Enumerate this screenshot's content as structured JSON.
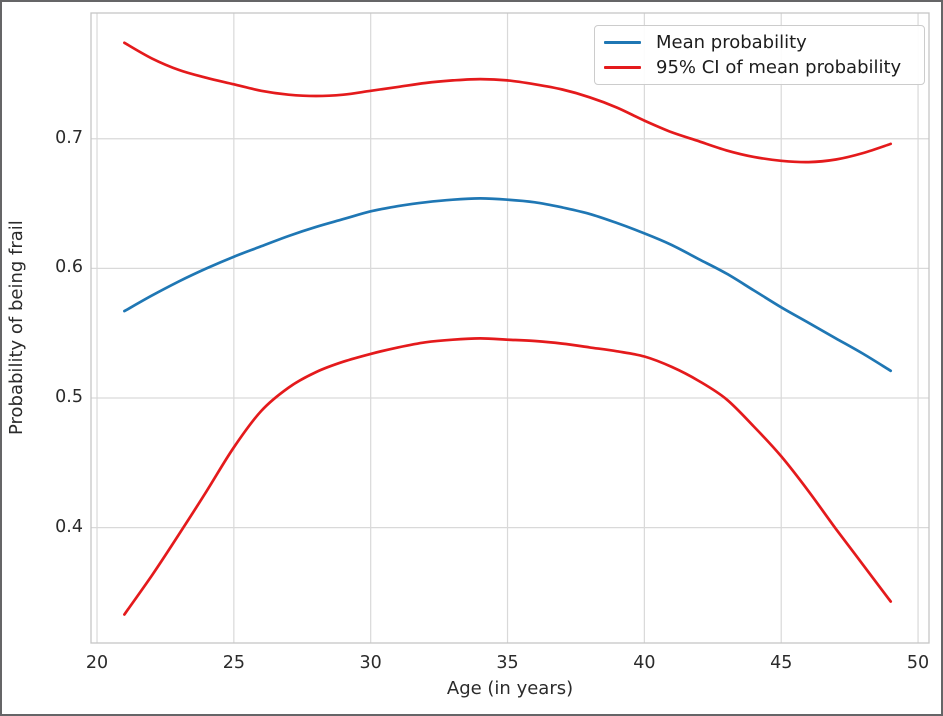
{
  "figure": {
    "background": "#ffffff",
    "border_color": "#656567"
  },
  "chart_data": {
    "type": "line",
    "title": "",
    "xlabel": "Age (in years)",
    "ylabel": "Probability of being frail",
    "xlim": [
      19.78,
      50.4
    ],
    "ylim": [
      0.311,
      0.797
    ],
    "x_ticks": [
      20,
      25,
      30,
      35,
      40,
      45,
      50
    ],
    "y_ticks": [
      0.4,
      0.5,
      0.6,
      0.7
    ],
    "x_tick_labels": [
      "20",
      "25",
      "30",
      "35",
      "40",
      "45",
      "50"
    ],
    "y_tick_labels": [
      "0.4",
      "0.5",
      "0.6",
      "0.7"
    ],
    "grid": true,
    "grid_color": "#d9d9d9",
    "spine_color": "#c6c6c6",
    "text_color": "#2b2b2b",
    "legend_position": "upper right",
    "x": [
      21,
      22,
      23,
      24,
      25,
      26,
      27,
      28,
      29,
      30,
      31,
      32,
      33,
      34,
      35,
      36,
      37,
      38,
      39,
      40,
      41,
      42,
      43,
      44,
      45,
      46,
      47,
      48,
      49
    ],
    "series": [
      {
        "name": "Mean probability",
        "role": "mean",
        "color": "#1f77b4",
        "values": [
          0.567,
          0.579,
          0.59,
          0.6,
          0.609,
          0.617,
          0.625,
          0.632,
          0.638,
          0.644,
          0.648,
          0.651,
          0.653,
          0.654,
          0.653,
          0.651,
          0.647,
          0.642,
          0.635,
          0.627,
          0.618,
          0.607,
          0.596,
          0.583,
          0.57,
          0.558,
          0.546,
          0.534,
          0.521
        ]
      },
      {
        "name": "95% CI of mean probability",
        "role": "ci-upper",
        "color": "#e41a1c",
        "values": [
          0.774,
          0.762,
          0.753,
          0.747,
          0.742,
          0.737,
          0.734,
          0.733,
          0.734,
          0.737,
          0.74,
          0.743,
          0.745,
          0.746,
          0.745,
          0.742,
          0.738,
          0.732,
          0.724,
          0.714,
          0.705,
          0.698,
          0.691,
          0.686,
          0.683,
          0.682,
          0.684,
          0.689,
          0.696
        ]
      },
      {
        "name": "95% CI of mean probability",
        "role": "ci-lower",
        "color": "#e41a1c",
        "values": [
          0.333,
          0.363,
          0.395,
          0.428,
          0.462,
          0.49,
          0.508,
          0.52,
          0.528,
          0.534,
          0.539,
          0.543,
          0.545,
          0.546,
          0.545,
          0.544,
          0.542,
          0.539,
          0.536,
          0.532,
          0.524,
          0.513,
          0.499,
          0.478,
          0.455,
          0.428,
          0.399,
          0.371,
          0.343
        ]
      }
    ],
    "legend": [
      {
        "label": "Mean probability",
        "color": "#1f77b4"
      },
      {
        "label": "95% CI of mean probability",
        "color": "#e41a1c"
      }
    ]
  }
}
